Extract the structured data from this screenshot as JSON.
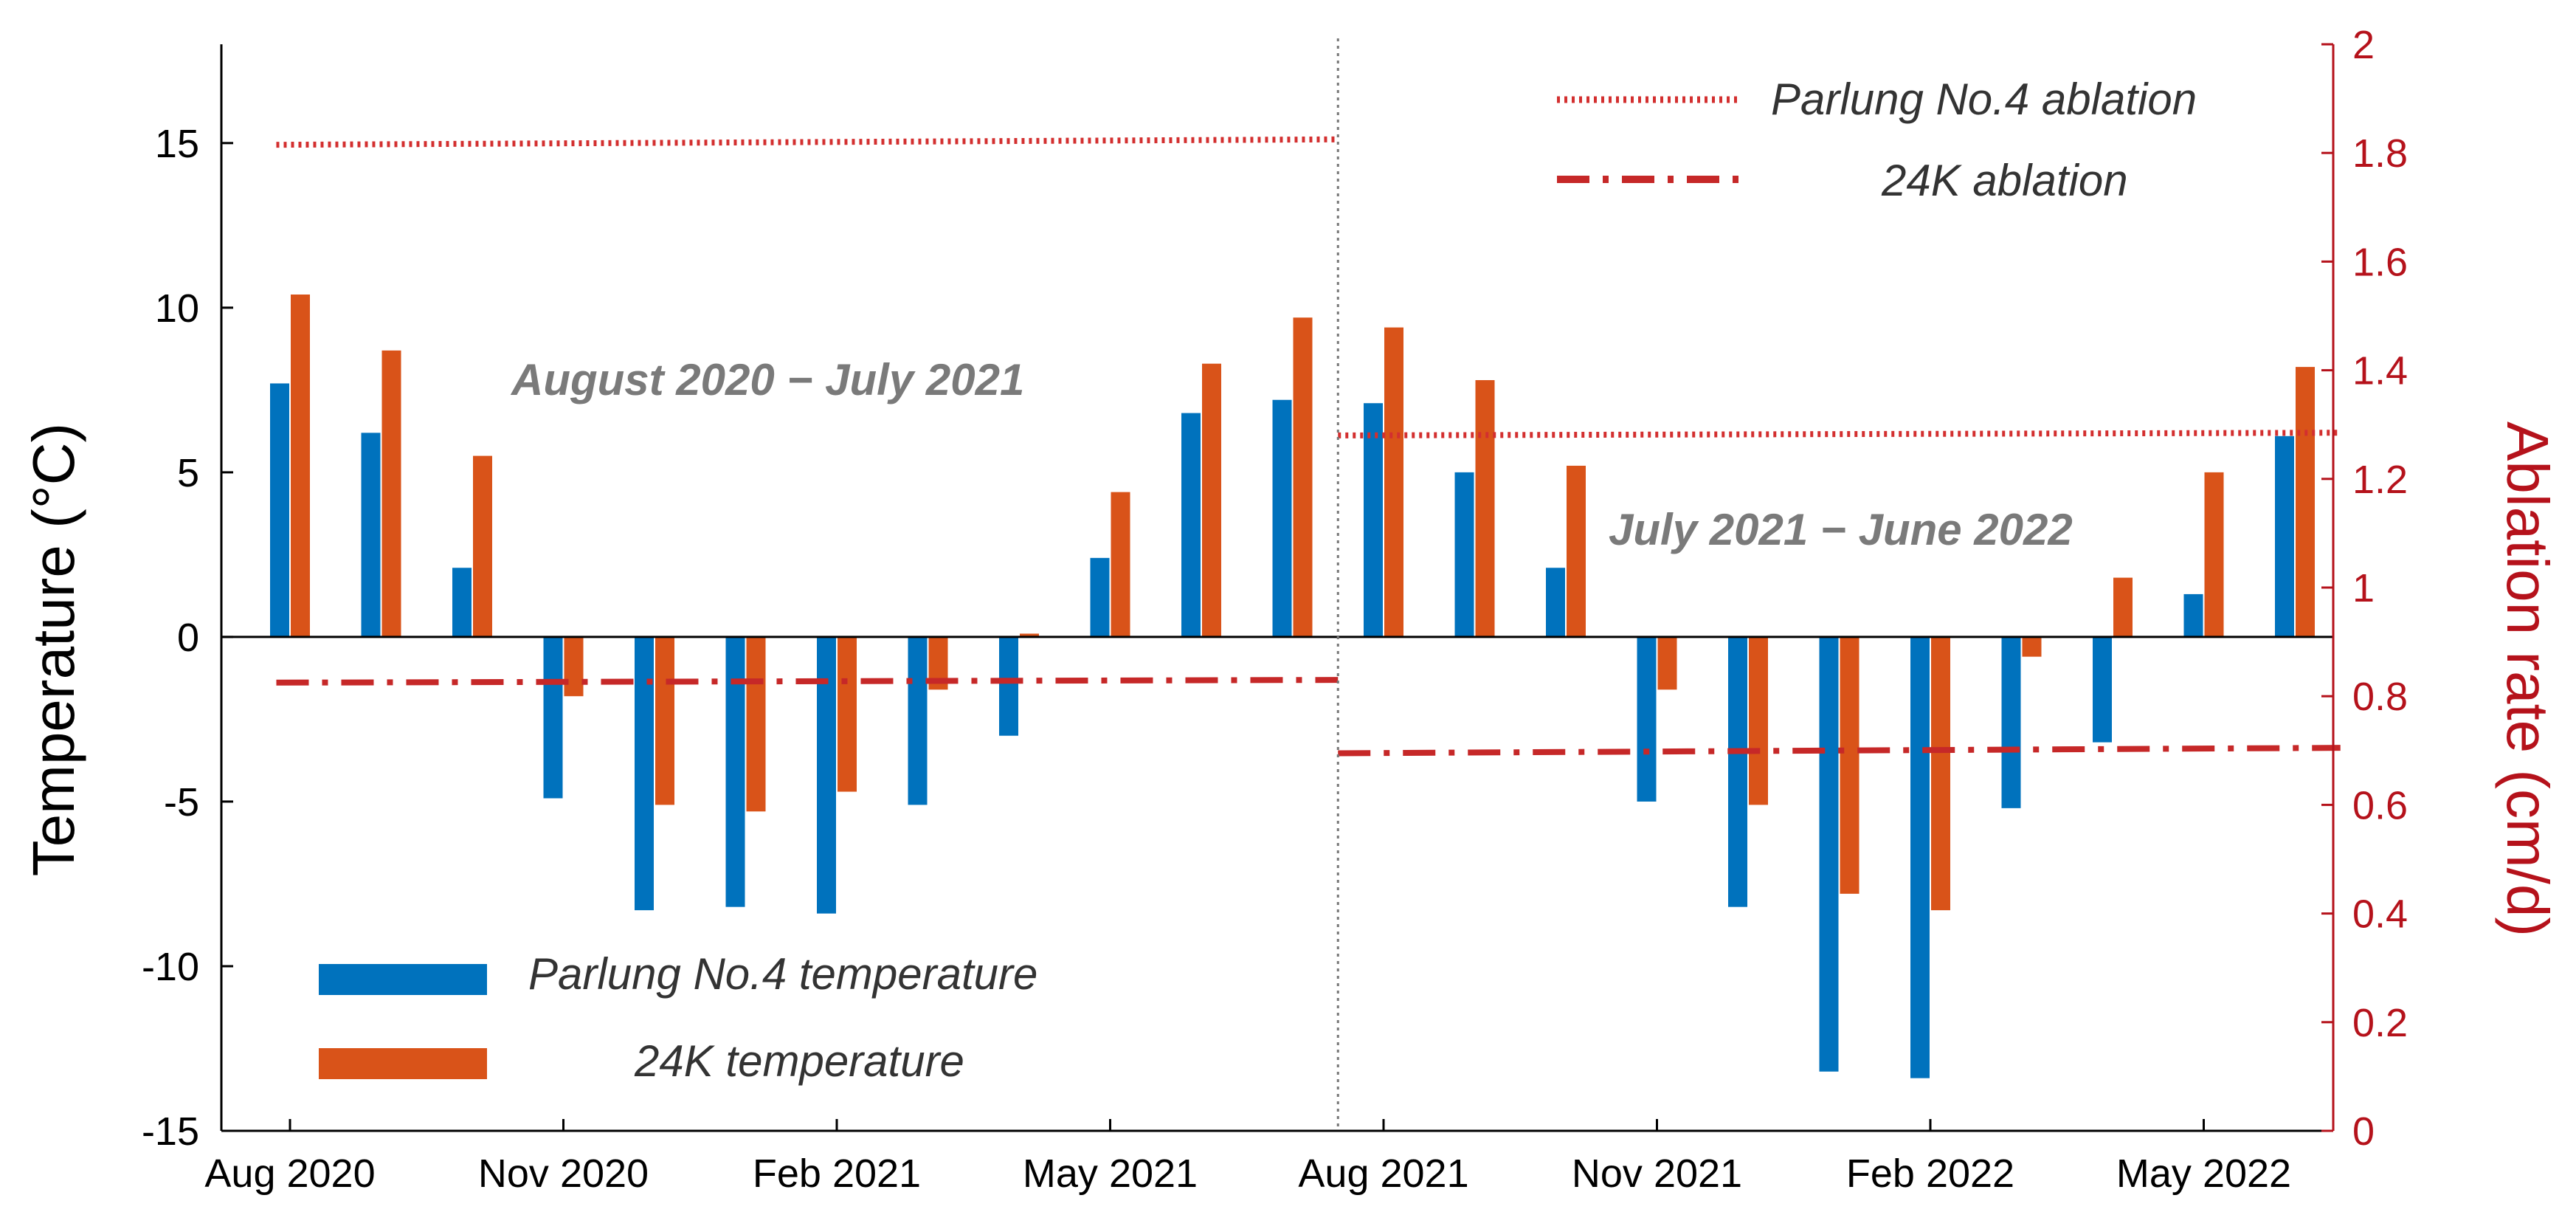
{
  "chart_data": {
    "type": "bar",
    "categories": [
      "Aug 2020",
      "Sep 2020",
      "Oct 2020",
      "Nov 2020",
      "Dec 2020",
      "Jan 2021",
      "Feb 2021",
      "Mar 2021",
      "Apr 2021",
      "May 2021",
      "Jun 2021",
      "Jul 2021",
      "Aug 2021",
      "Sep 2021",
      "Oct 2021",
      "Nov 2021",
      "Dec 2021",
      "Jan 2022",
      "Feb 2022",
      "Mar 2022",
      "Apr 2022",
      "May 2022",
      "Jun 2022"
    ],
    "x_tick_labels": [
      "Aug 2020",
      "Nov 2020",
      "Feb 2021",
      "May 2021",
      "Aug 2021",
      "Nov 2021",
      "Feb 2022",
      "May 2022"
    ],
    "x_tick_indices": [
      0,
      3,
      6,
      9,
      12,
      15,
      18,
      21
    ],
    "series": [
      {
        "name": "Parlung No.4 temperature",
        "color": "#0072bd",
        "values": [
          7.7,
          6.2,
          2.1,
          -4.9,
          -8.3,
          -8.2,
          -8.4,
          -5.1,
          -3.0,
          2.4,
          6.8,
          7.2,
          7.1,
          5.0,
          2.1,
          -5.0,
          -8.2,
          -13.2,
          -13.4,
          -5.2,
          -3.2,
          1.3,
          6.1
        ]
      },
      {
        "name": "24K temperature",
        "color": "#d95319",
        "values": [
          10.4,
          8.7,
          5.5,
          -1.8,
          -5.1,
          -5.3,
          -4.7,
          -1.6,
          0.1,
          4.4,
          8.3,
          9.7,
          9.4,
          7.8,
          5.2,
          -1.6,
          -5.1,
          -7.8,
          -8.3,
          -0.6,
          1.8,
          5.0,
          8.2
        ]
      }
    ],
    "ablation_lines": [
      {
        "name": "Parlung No.4 ablation",
        "style": "dotted",
        "color": "#d32f2f",
        "segments": [
          {
            "from_index": -0.15,
            "to_index": 11.5,
            "value_start": 1.815,
            "value_end": 1.825
          },
          {
            "from_index": 11.5,
            "to_index": 22.5,
            "value_start": 1.28,
            "value_end": 1.285
          }
        ]
      },
      {
        "name": "24K ablation",
        "style": "dash-dot",
        "color": "#c62828",
        "segments": [
          {
            "from_index": -0.15,
            "to_index": 11.5,
            "value_start": 0.825,
            "value_end": 0.83
          },
          {
            "from_index": 11.5,
            "to_index": 22.5,
            "value_start": 0.695,
            "value_end": 0.705
          }
        ]
      }
    ],
    "period_divider_index": 11.5,
    "annotations": [
      "August 2020 − July 2021",
      "July 2021 − June 2022"
    ],
    "ylabel": "Temperature (°C)",
    "ylabel_right": "Ablation rate (cm/d)",
    "ylim": [
      -15,
      18
    ],
    "ylim_right": [
      0,
      2
    ],
    "y_ticks": [
      -15,
      -10,
      -5,
      0,
      5,
      10,
      15
    ],
    "y_ticks_right": [
      0,
      0.2,
      0.4,
      0.6,
      0.8,
      1,
      1.2,
      1.4,
      1.6,
      1.8,
      2
    ],
    "right_axis_color": "#b5121b"
  }
}
